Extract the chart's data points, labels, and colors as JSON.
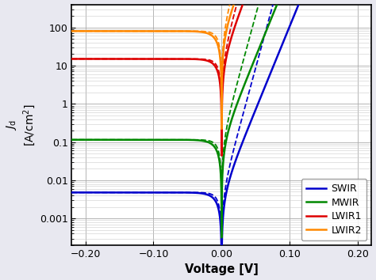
{
  "xlabel": "Voltage [V]",
  "ylabel": "$J_\\mathrm{d}$\n[A/cm$^2$]",
  "xlim": [
    -0.22,
    0.22
  ],
  "ylim": [
    0.0002,
    400
  ],
  "xticks": [
    -0.2,
    -0.1,
    0.0,
    0.1,
    0.2
  ],
  "xtick_labels": [
    "−0.20",
    "−0.10",
    "0.00",
    "0.10",
    "0.20"
  ],
  "Vt": 0.006647,
  "diodes": [
    {
      "name": "SWIR",
      "color": "#0000cc",
      "J0_solid": 0.0048,
      "n_solid": 1.5,
      "J0_dashed": 0.0048,
      "n_dashed": 1.0
    },
    {
      "name": "MWIR",
      "color": "#008800",
      "J0_solid": 0.115,
      "n_solid": 1.5,
      "J0_dashed": 0.115,
      "n_dashed": 1.0
    },
    {
      "name": "LWIR1",
      "color": "#dd0000",
      "J0_solid": 15.0,
      "n_solid": 1.4,
      "J0_dashed": 15.0,
      "n_dashed": 1.0
    },
    {
      "name": "LWIR2",
      "color": "#ff8800",
      "J0_solid": 80.0,
      "n_solid": 1.5,
      "J0_dashed": 80.0,
      "n_dashed": 1.0
    }
  ],
  "legend_loc": "lower right",
  "grid_major_color": "#aaaaaa",
  "grid_minor_color": "#cccccc",
  "background_color": "#ffffff",
  "fig_facecolor": "#e8e8f0"
}
